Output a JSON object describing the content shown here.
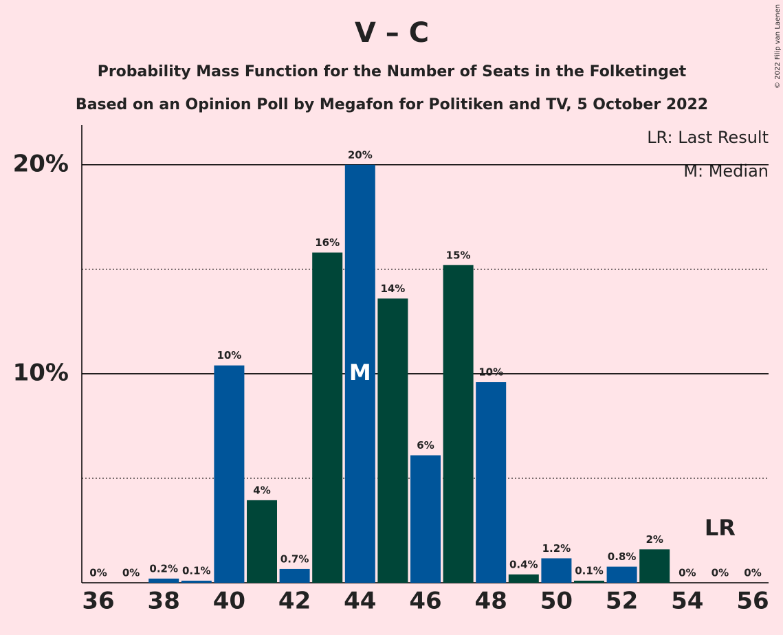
{
  "chart_data": {
    "type": "bar",
    "title": "V – C",
    "subtitle": "Probability Mass Function for the Number of Seats in the Folketinget",
    "subtitle2": "Based on an Opinion Poll by Megafon for Politiken and TV, 5 October 2022",
    "copyright": "© 2022 Filip van Laenen",
    "categories": [
      "36",
      null,
      "38",
      null,
      "40",
      null,
      "42",
      null,
      "44",
      null,
      "46",
      null,
      "48",
      null,
      "50",
      null,
      "52",
      null,
      "54",
      null,
      "56"
    ],
    "values": [
      0,
      0,
      0.2,
      0.1,
      10.4,
      3.95,
      0.66,
      15.8,
      20.0,
      13.6,
      6.1,
      15.2,
      9.6,
      0.4,
      1.17,
      0.1,
      0.77,
      1.6,
      0,
      0,
      0
    ],
    "value_labels": [
      "0%",
      "0%",
      "0.2%",
      "0.1%",
      "10%",
      "4%",
      "0.7%",
      "16%",
      "20%",
      "14%",
      "6%",
      "15%",
      "10%",
      "0.4%",
      "1.2%",
      "0.1%",
      "0.8%",
      "2%",
      "0%",
      "0%",
      "0%"
    ],
    "colors": [
      "#00559a",
      "#004638",
      "#00559a",
      "#00559a",
      "#00559a",
      "#004638",
      "#00559a",
      "#004638",
      "#00559a",
      "#004638",
      "#00559a",
      "#004638",
      "#00559a",
      "#004638",
      "#00559a",
      "#004638",
      "#00559a",
      "#004638",
      "#00559a",
      "#004638",
      "#00559a"
    ],
    "ylim": [
      0,
      21.9
    ],
    "yticks": [
      {
        "value": 10,
        "label": "10%"
      },
      {
        "value": 20,
        "label": "20%"
      }
    ],
    "minor_yticks": [
      5,
      15
    ],
    "grid": true,
    "median": {
      "category": "44",
      "label": "M"
    },
    "last_result": {
      "category": "55",
      "label": "LR"
    },
    "legend": [
      "LR: Last Result",
      "M: Median"
    ]
  }
}
